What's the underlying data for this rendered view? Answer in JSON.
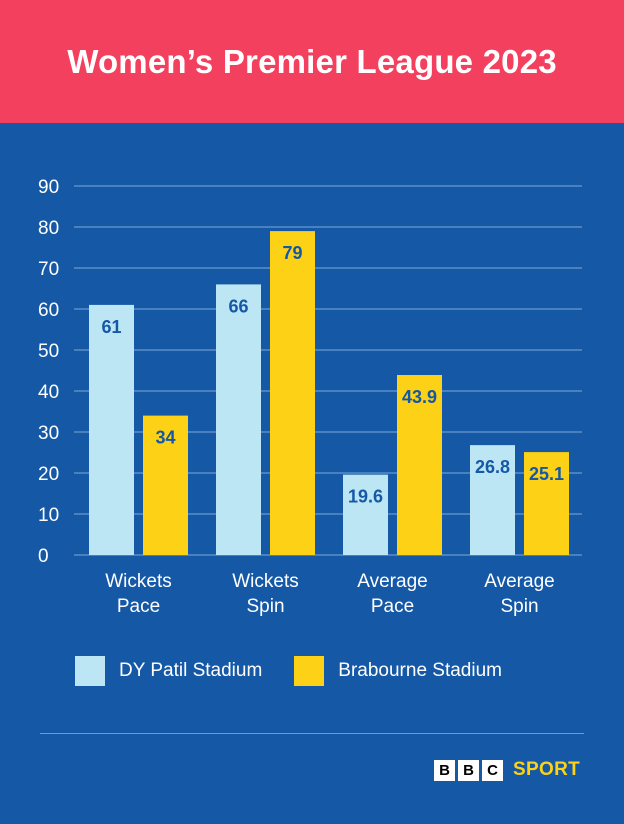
{
  "title": "Women’s Premier League 2023",
  "chart_data": {
    "type": "bar",
    "categories": [
      [
        "Wickets",
        "Pace"
      ],
      [
        "Wickets",
        "Spin"
      ],
      [
        "Average",
        "Pace"
      ],
      [
        "Average",
        "Spin"
      ]
    ],
    "series": [
      {
        "name": "DY Patil Stadium",
        "color": "#bde6f4",
        "values": [
          61,
          66,
          19.6,
          26.8
        ],
        "labels": [
          "61",
          "66",
          "19.6",
          "26.8"
        ]
      },
      {
        "name": "Brabourne Stadium",
        "color": "#fcd116",
        "values": [
          34,
          79,
          43.9,
          25.1
        ],
        "labels": [
          "34",
          "79",
          "43.9",
          "25.1"
        ]
      }
    ],
    "yticks": [
      0,
      10,
      20,
      30,
      40,
      50,
      60,
      70,
      80,
      90
    ],
    "ylim": [
      0,
      90
    ],
    "grid": true,
    "legend": "bottom"
  },
  "logo": {
    "letters": [
      "B",
      "B",
      "C"
    ],
    "sport": "SPORT",
    "sport_color": "#fcd116"
  }
}
